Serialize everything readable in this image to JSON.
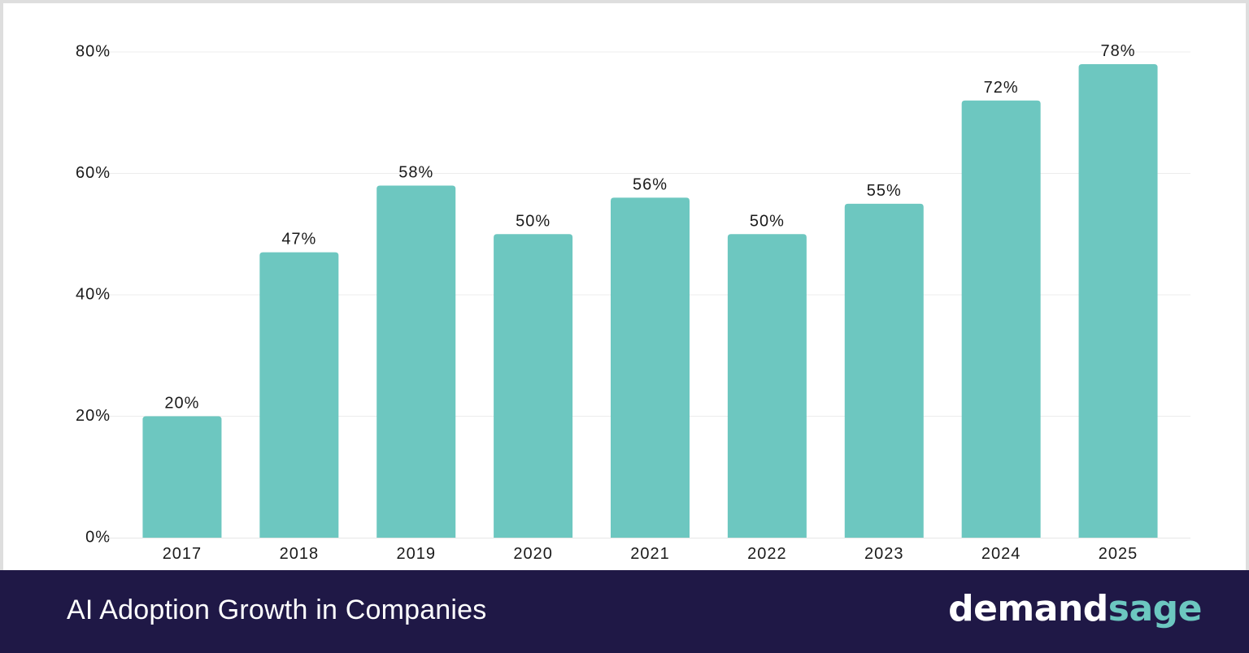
{
  "chart_data": {
    "type": "bar",
    "title": "AI Adoption Growth in Companies",
    "categories": [
      "2017",
      "2018",
      "2019",
      "2020",
      "2021",
      "2022",
      "2023",
      "2024",
      "2025"
    ],
    "values": [
      20,
      47,
      58,
      50,
      56,
      50,
      55,
      72,
      78
    ],
    "data_labels": [
      "20%",
      "47%",
      "58%",
      "50%",
      "56%",
      "50%",
      "55%",
      "72%",
      "78%"
    ],
    "yticks": [
      0,
      20,
      40,
      60,
      80
    ],
    "ytick_labels": [
      "0%",
      "20%",
      "40%",
      "60%",
      "80%"
    ],
    "ylim": [
      0,
      80
    ],
    "xlabel": "",
    "ylabel": "",
    "grid": true,
    "legend": "none",
    "bar_color": "#6dc7c0"
  },
  "footer": {
    "title": "AI Adoption Growth in Companies",
    "brand_part1": "demand",
    "brand_part2": "sage",
    "background_color": "#1f1846",
    "brand_accent_color": "#6cc7c0"
  }
}
